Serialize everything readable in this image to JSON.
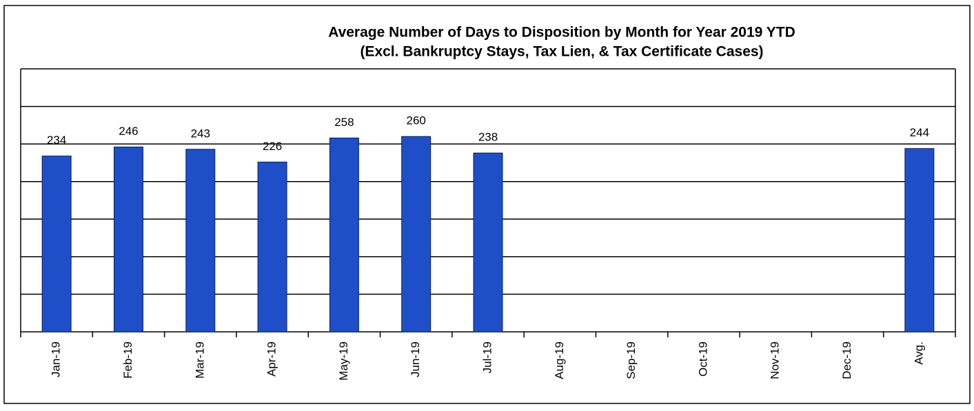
{
  "chart_data": {
    "type": "bar",
    "title": "Average Number of Days to Disposition  by Month for Year 2019 YTD",
    "subtitle": "(Excl. Bankruptcy Stays, Tax Lien, & Tax Certificate Cases)",
    "categories": [
      "Jan-19",
      "Feb-19",
      "Mar-19",
      "Apr-19",
      "May-19",
      "Jun-19",
      "Jul-19",
      "Aug-19",
      "Sep-19",
      "Oct-19",
      "Nov-19",
      "Dec-19",
      "Avg."
    ],
    "values": [
      234,
      246,
      243,
      226,
      258,
      260,
      238,
      null,
      null,
      null,
      null,
      null,
      244
    ],
    "color": "#1f4fc8",
    "ylim": [
      0,
      350
    ],
    "yticks": [
      0,
      50,
      100,
      150,
      200,
      250,
      300,
      350
    ],
    "grid": true
  }
}
